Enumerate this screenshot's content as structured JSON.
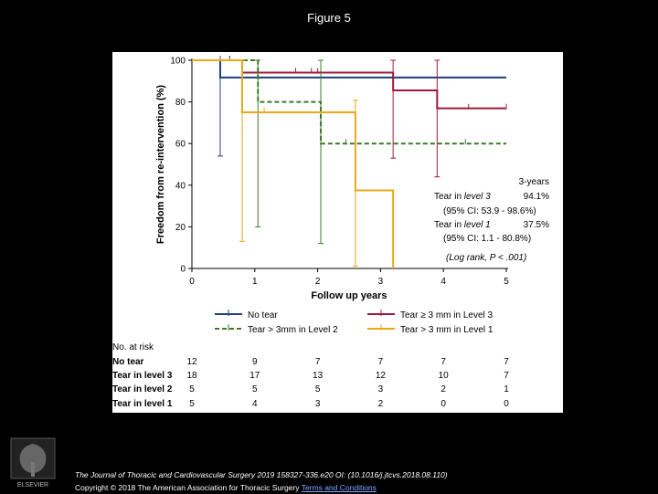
{
  "figure_title": "Figure 5",
  "chart_data": {
    "type": "line",
    "ylabel": "Freedom from re-intervention (%)",
    "xlabel": "Follow up years",
    "xlim": [
      0,
      5
    ],
    "ylim": [
      0,
      100
    ],
    "xticks": [
      "0",
      "1",
      "2",
      "3",
      "4",
      "5"
    ],
    "yticks": [
      "0",
      "20",
      "40",
      "60",
      "80",
      "100"
    ],
    "series": [
      {
        "name": "No tear",
        "color": "#1f3f7a",
        "dash": false,
        "steps": [
          [
            0,
            100
          ],
          [
            0.45,
            91.7
          ],
          [
            5,
            91.7
          ]
        ],
        "censors": [
          [
            0.45,
            91.7
          ]
        ],
        "ci": [
          [
            0.45,
            54,
            100
          ]
        ]
      },
      {
        "name": "Tear ≥ 3 mm in Level 3",
        "color": "#a01a3a",
        "dash": false,
        "steps": [
          [
            0,
            100
          ],
          [
            0.8,
            94.1
          ],
          [
            3.2,
            85.5
          ],
          [
            3.9,
            76.9
          ],
          [
            5,
            76.9
          ]
        ],
        "censors": [
          [
            0.45,
            100
          ],
          [
            0.6,
            100
          ],
          [
            1.65,
            94.1
          ],
          [
            1.9,
            94.1
          ],
          [
            2,
            94.1
          ],
          [
            4.4,
            76.9
          ],
          [
            5,
            76.9
          ]
        ],
        "ci": [
          [
            3.2,
            53,
            100
          ],
          [
            3.9,
            44,
            100
          ]
        ]
      },
      {
        "name": "Tear > 3mm in Level 2",
        "color": "#3a7a2a",
        "dash": true,
        "steps": [
          [
            0,
            100
          ],
          [
            1.05,
            80
          ],
          [
            2.05,
            60
          ],
          [
            5,
            60
          ]
        ],
        "censors": [
          [
            2.45,
            60
          ],
          [
            4.35,
            60
          ]
        ],
        "ci": [
          [
            1.05,
            20,
            100
          ],
          [
            2.05,
            12,
            100
          ]
        ]
      },
      {
        "name": "Tear > 3 mm in Level 1",
        "color": "#e8a818",
        "dash": false,
        "steps": [
          [
            0,
            100
          ],
          [
            0.8,
            75
          ],
          [
            2.6,
            37.5
          ],
          [
            3.2,
            0
          ]
        ],
        "censors": [
          [
            1.15,
            75
          ]
        ],
        "ci": [
          [
            0.8,
            13,
            100
          ],
          [
            2.6,
            1.1,
            80.8
          ]
        ]
      }
    ],
    "annotation": {
      "header": "3-years",
      "lines": [
        {
          "label": "Tear in ",
          "italic": "level 3",
          "value": "94.1%"
        },
        {
          "label": "(95% CI: 53.9 - 98.6%)",
          "italic": "",
          "value": ""
        },
        {
          "label": "Tear in ",
          "italic": "level 1",
          "value": "37.5%"
        },
        {
          "label": "(95% CI: 1.1 - 80.8%)",
          "italic": "",
          "value": ""
        }
      ],
      "logrank": "(Log rank, P < .001)"
    },
    "risk_table": {
      "title": "No. at risk",
      "columns": [
        "0",
        "1",
        "2",
        "3",
        "4",
        "5"
      ],
      "rows": [
        {
          "label": "No tear",
          "values": [
            "12",
            "9",
            "7",
            "7",
            "7",
            "7"
          ]
        },
        {
          "label": "Tear in level 3",
          "values": [
            "18",
            "17",
            "13",
            "12",
            "10",
            "7"
          ]
        },
        {
          "label": "Tear in level 2",
          "values": [
            "5",
            "5",
            "5",
            "3",
            "2",
            "1"
          ]
        },
        {
          "label": "Tear in level 1",
          "values": [
            "5",
            "4",
            "3",
            "2",
            "0",
            "0"
          ]
        }
      ]
    }
  },
  "citation": {
    "journal": "The Journal of Thoracic and Cardiovascular Surgery 2019 158327-336.e20 OI: (10.1016/j.jtcvs.2018.08.110)",
    "copyright": "Copyright © 2018 The American Association for Thoracic Surgery ",
    "terms": "Terms and Conditions"
  },
  "logo_label": "ELSEVIER"
}
